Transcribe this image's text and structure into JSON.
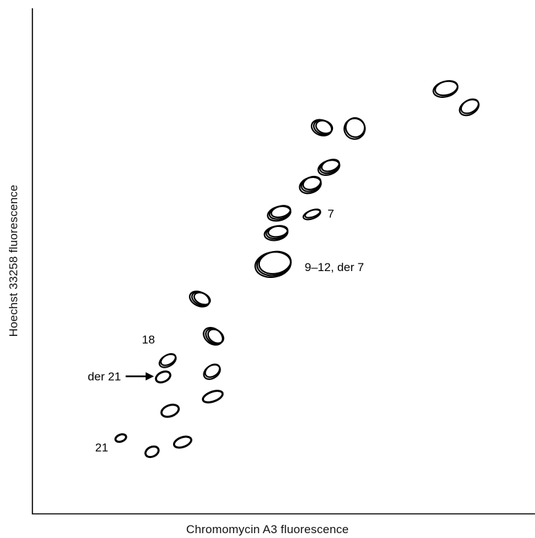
{
  "chart_data": {
    "type": "scatter",
    "plot_style": "bivariate flow karyotype contour plot",
    "xlabel": "Chromomycin A3 fluorescence",
    "ylabel": "Hoechst 33258 fluorescence",
    "grid": false,
    "legend": "none",
    "xlim": [
      0,
      100
    ],
    "ylim": [
      0,
      100
    ],
    "points": [
      {
        "x": 17.7,
        "y": 15.1,
        "label": "21"
      },
      {
        "x": 23.9,
        "y": 12.4,
        "label": ""
      },
      {
        "x": 30.0,
        "y": 14.3,
        "label": ""
      },
      {
        "x": 27.5,
        "y": 20.5,
        "label": ""
      },
      {
        "x": 26.1,
        "y": 27.2,
        "label": "der 21"
      },
      {
        "x": 27.0,
        "y": 30.4,
        "label": "18"
      },
      {
        "x": 36.0,
        "y": 23.3,
        "label": ""
      },
      {
        "x": 35.8,
        "y": 28.2,
        "label": ""
      },
      {
        "x": 36.1,
        "y": 35.1,
        "label": ""
      },
      {
        "x": 33.4,
        "y": 42.5,
        "label": ""
      },
      {
        "x": 48.0,
        "y": 49.4,
        "label": "9–12, der 7"
      },
      {
        "x": 48.6,
        "y": 55.6,
        "label": ""
      },
      {
        "x": 49.2,
        "y": 59.5,
        "label": ""
      },
      {
        "x": 55.7,
        "y": 59.3,
        "label": "7"
      },
      {
        "x": 55.4,
        "y": 65.1,
        "label": ""
      },
      {
        "x": 59.1,
        "y": 68.6,
        "label": ""
      },
      {
        "x": 57.7,
        "y": 76.4,
        "label": ""
      },
      {
        "x": 64.2,
        "y": 76.3,
        "label": ""
      },
      {
        "x": 82.3,
        "y": 84.1,
        "label": ""
      },
      {
        "x": 87.0,
        "y": 80.5,
        "label": ""
      }
    ],
    "annotations": [
      {
        "text": "der 21",
        "points_to": "der 21",
        "style": "arrow"
      }
    ]
  }
}
